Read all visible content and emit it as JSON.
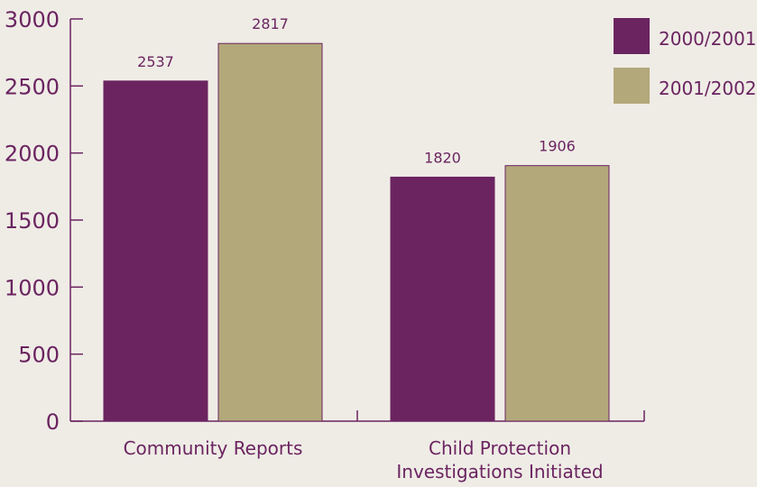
{
  "chart_data": {
    "type": "bar",
    "categories": [
      "Community Reports",
      "Child Protection Investigations Initiated"
    ],
    "category_lines": [
      [
        "Community Reports"
      ],
      [
        "Child Protection",
        "Investigations Initiated"
      ]
    ],
    "series": [
      {
        "name": "2000/2001",
        "values": [
          2537,
          1820
        ],
        "color": "#6b2460"
      },
      {
        "name": "2001/2002",
        "values": [
          2817,
          1906
        ],
        "color": "#b3a87a"
      }
    ],
    "ylim": [
      0,
      3000
    ],
    "yticks": [
      0,
      500,
      1000,
      1500,
      2000,
      2500,
      3000
    ],
    "grid": false,
    "legend_position": "top-right",
    "data_labels": true,
    "text_color": "#6b2460",
    "bar_edge_color": "#6b2460"
  }
}
